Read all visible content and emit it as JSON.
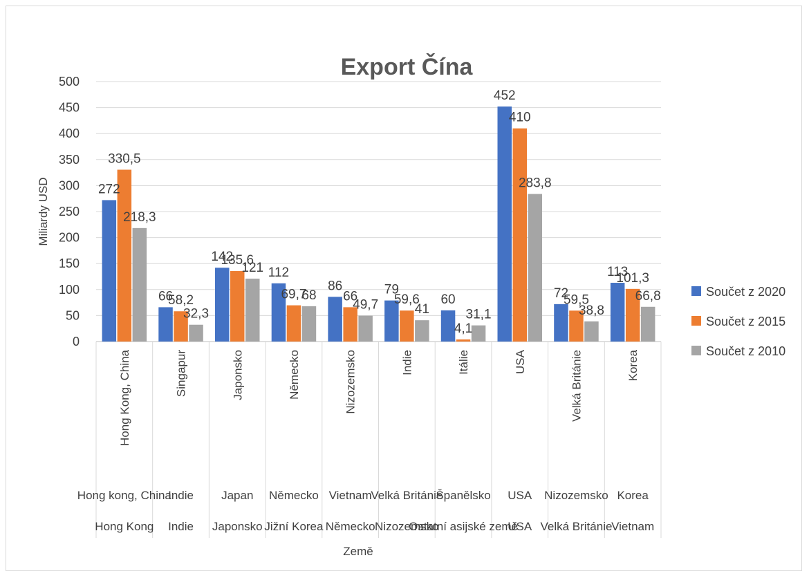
{
  "chart_data": {
    "type": "bar",
    "title": "Export Čína",
    "ylabel": "Miliardy USD",
    "xlabel": "Země",
    "ylim": [
      0,
      500
    ],
    "yticks": [
      0,
      50,
      100,
      150,
      200,
      250,
      300,
      350,
      400,
      450,
      500
    ],
    "grid": true,
    "legend_position": "right",
    "categories": [
      "Hong Kong, China",
      "Singapur",
      "Japonsko",
      "Německo",
      "Nizozemsko",
      "Indie",
      "Itálie",
      "USA",
      "Velká Británie",
      "Korea"
    ],
    "categories_level2": [
      "Hong kong, China",
      "Indie",
      "Japan",
      "Německo",
      "Vietnam",
      "Velká Británie",
      "Španělsko",
      "USA",
      "Nizozemsko",
      "Korea"
    ],
    "categories_level3": [
      "Hong Kong",
      "Indie",
      "Japonsko",
      "Jižní Korea",
      "Německo",
      "Nizozemsko",
      "Ostatní asijské země",
      "USA",
      "Velká Británie",
      "Vietnam"
    ],
    "series": [
      {
        "name": "Součet z 2020",
        "color": "#4472c4",
        "values": [
          272,
          66,
          142,
          112,
          86,
          79,
          60,
          452,
          72,
          113
        ],
        "labels": [
          "272",
          "66",
          "142",
          "112",
          "86",
          "79",
          "60",
          "452",
          "72",
          "113"
        ]
      },
      {
        "name": "Součet z 2015",
        "color": "#ed7d31",
        "values": [
          330.5,
          58.2,
          135.6,
          69.7,
          66,
          59.6,
          4.1,
          410,
          59.5,
          101.3
        ],
        "labels": [
          "330,5",
          "58,2",
          "135,6",
          "69,7",
          "66",
          "59,6",
          "4,1",
          "410",
          "59,5",
          "101,3"
        ]
      },
      {
        "name": "Součet z 2010",
        "color": "#a5a5a5",
        "values": [
          218.3,
          32.3,
          121,
          68,
          49.7,
          41,
          31.1,
          283.8,
          38.8,
          66.8
        ],
        "labels": [
          "218,3",
          "32,3",
          "121",
          "68",
          "49,7",
          "41",
          "31,1",
          "283,8",
          "38,8",
          "66,8"
        ]
      }
    ]
  }
}
